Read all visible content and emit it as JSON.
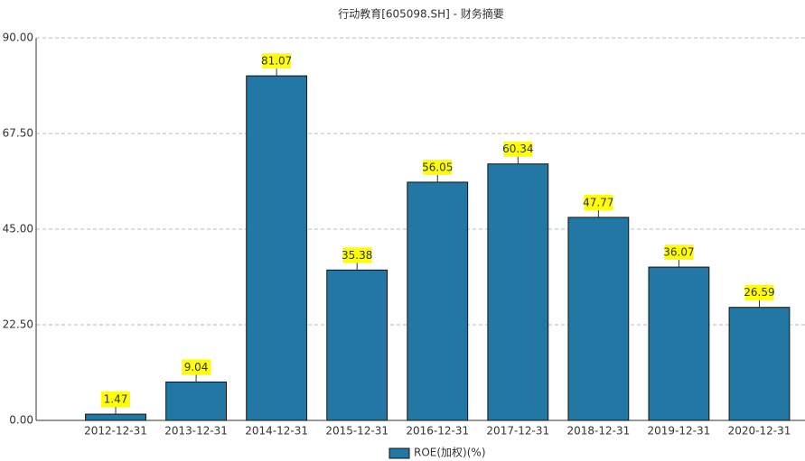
{
  "chart_data": {
    "type": "bar",
    "title": "行动教育[605098.SH] - 财务摘要",
    "categories": [
      "2012-12-31",
      "2013-12-31",
      "2014-12-31",
      "2015-12-31",
      "2016-12-31",
      "2017-12-31",
      "2018-12-31",
      "2019-12-31",
      "2020-12-31"
    ],
    "series": [
      {
        "name": "ROE(加权)(%)",
        "color": "#2277a4",
        "values": [
          1.47,
          9.04,
          81.07,
          35.38,
          56.05,
          60.34,
          47.77,
          36.07,
          26.59
        ]
      }
    ],
    "ylim": [
      0,
      90
    ],
    "yticks": [
      {
        "value": 0,
        "label": "0.00"
      },
      {
        "value": 22.5,
        "label": "22.50"
      },
      {
        "value": 45,
        "label": "45.00"
      },
      {
        "value": 67.5,
        "label": "67.50"
      },
      {
        "value": 90,
        "label": "90.00"
      }
    ],
    "grid": true,
    "legend": "bottom"
  }
}
